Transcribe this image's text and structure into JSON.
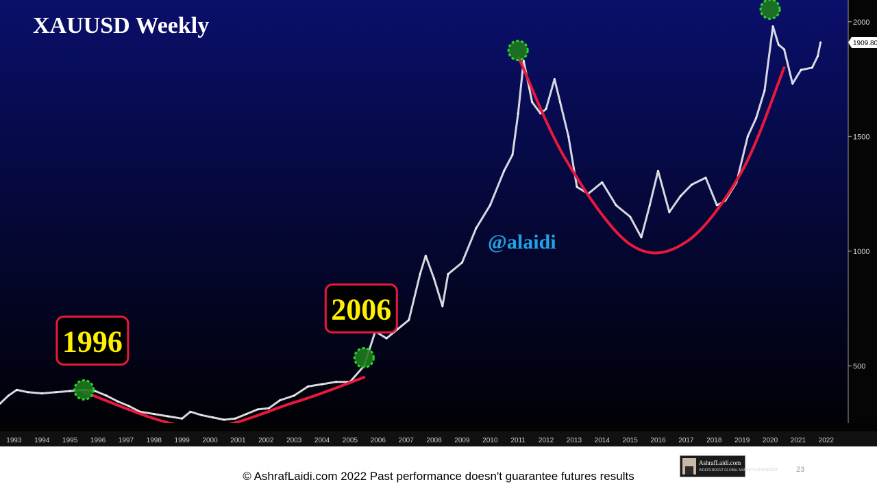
{
  "chart_data": {
    "type": "line",
    "title": "XAUUSD Weekly",
    "watermark": "@alaidi",
    "y_ticks": [
      500,
      1000,
      1500,
      2000
    ],
    "ylim": [
      250,
      2080
    ],
    "xlim": [
      1993,
      2022.75
    ],
    "x_tick_labels": [
      "1993",
      "1994",
      "1995",
      "1996",
      "1997",
      "1998",
      "1999",
      "2000",
      "2001",
      "2002",
      "2003",
      "2004",
      "2005",
      "2006",
      "2007",
      "2008",
      "2009",
      "2010",
      "2011",
      "2012",
      "2013",
      "2014",
      "2015",
      "2016",
      "2017",
      "2018",
      "2019",
      "2020",
      "2021",
      "2022"
    ],
    "last_price_label": "1909.80",
    "series": [
      {
        "x": [
          1993.0,
          1993.3,
          1993.6,
          1994.0,
          1994.5,
          1995.0,
          1995.5,
          1996.0,
          1996.4,
          1996.8,
          1997.2,
          1997.6,
          1998.0,
          1998.5,
          1999.0,
          1999.5,
          1999.8,
          2000.2,
          2000.6,
          2001.0,
          2001.4,
          2001.8,
          2002.2,
          2002.6,
          2003.0,
          2003.5,
          2004.0,
          2004.5,
          2005.0,
          2005.5,
          2006.0,
          2006.4,
          2006.8,
          2007.2,
          2007.6,
          2008.0,
          2008.2,
          2008.5,
          2008.8,
          2009.0,
          2009.5,
          2010.0,
          2010.5,
          2011.0,
          2011.3,
          2011.5,
          2011.7,
          2012.0,
          2012.3,
          2012.5,
          2012.8,
          2013.0,
          2013.3,
          2013.6,
          2014.0,
          2014.5,
          2015.0,
          2015.5,
          2015.9,
          2016.2,
          2016.5,
          2016.9,
          2017.3,
          2017.7,
          2018.2,
          2018.6,
          2018.9,
          2019.3,
          2019.7,
          2020.0,
          2020.3,
          2020.6,
          2020.8,
          2021.0,
          2021.3,
          2021.6,
          2022.0,
          2022.2,
          2022.3
        ],
        "y": [
          335,
          370,
          395,
          385,
          380,
          385,
          390,
          395,
          390,
          370,
          345,
          325,
          300,
          290,
          280,
          270,
          300,
          285,
          275,
          265,
          270,
          290,
          310,
          315,
          350,
          370,
          410,
          420,
          430,
          430,
          500,
          650,
          620,
          660,
          700,
          900,
          980,
          880,
          760,
          900,
          950,
          1100,
          1200,
          1350,
          1420,
          1600,
          1830,
          1650,
          1600,
          1620,
          1750,
          1650,
          1500,
          1280,
          1250,
          1300,
          1200,
          1150,
          1060,
          1200,
          1350,
          1170,
          1240,
          1290,
          1320,
          1200,
          1220,
          1300,
          1500,
          1580,
          1700,
          1980,
          1900,
          1880,
          1730,
          1790,
          1800,
          1850,
          1910
        ]
      }
    ],
    "markers": [
      {
        "x": 1996.0,
        "y": 395
      },
      {
        "x": 2006.0,
        "y": 535
      },
      {
        "x": 2011.5,
        "y": 1875
      },
      {
        "x": 2020.5,
        "y": 2055
      }
    ],
    "curves": [
      {
        "x": [
          1996.0,
          2000.0,
          2003.5,
          2006.0
        ],
        "y": [
          385,
          230,
          340,
          450
        ]
      },
      {
        "x": [
          2011.5,
          2013.2,
          2015.5,
          2017.5,
          2019.5,
          2021.0
        ],
        "y": [
          1850,
          1400,
          1030,
          1040,
          1350,
          1800
        ]
      }
    ],
    "annotations": [
      {
        "text": "1996",
        "x": 1996.3,
        "y": 610
      },
      {
        "text": "2006",
        "x": 2005.9,
        "y": 750
      }
    ],
    "colors": {
      "background_top": "#0a0f6b",
      "background_bottom": "#000000",
      "price": "#e9e9ef",
      "curve": "#e8193c",
      "marker": "#1e7a1e",
      "marker_border": "#2bd62b",
      "annotation_text": "#ffef00",
      "annotation_border": "#e8193c",
      "watermark": "#1fa3e3"
    }
  },
  "footer": {
    "copyright": "© AshrafLaidi.com 2022 Past performance doesn't guarantee futures results",
    "slide_number": "23",
    "logo_name": "AshrafLaidi.com",
    "logo_tagline": "INDEPENDENT GLOBAL MARKETS STRATEGIST"
  }
}
